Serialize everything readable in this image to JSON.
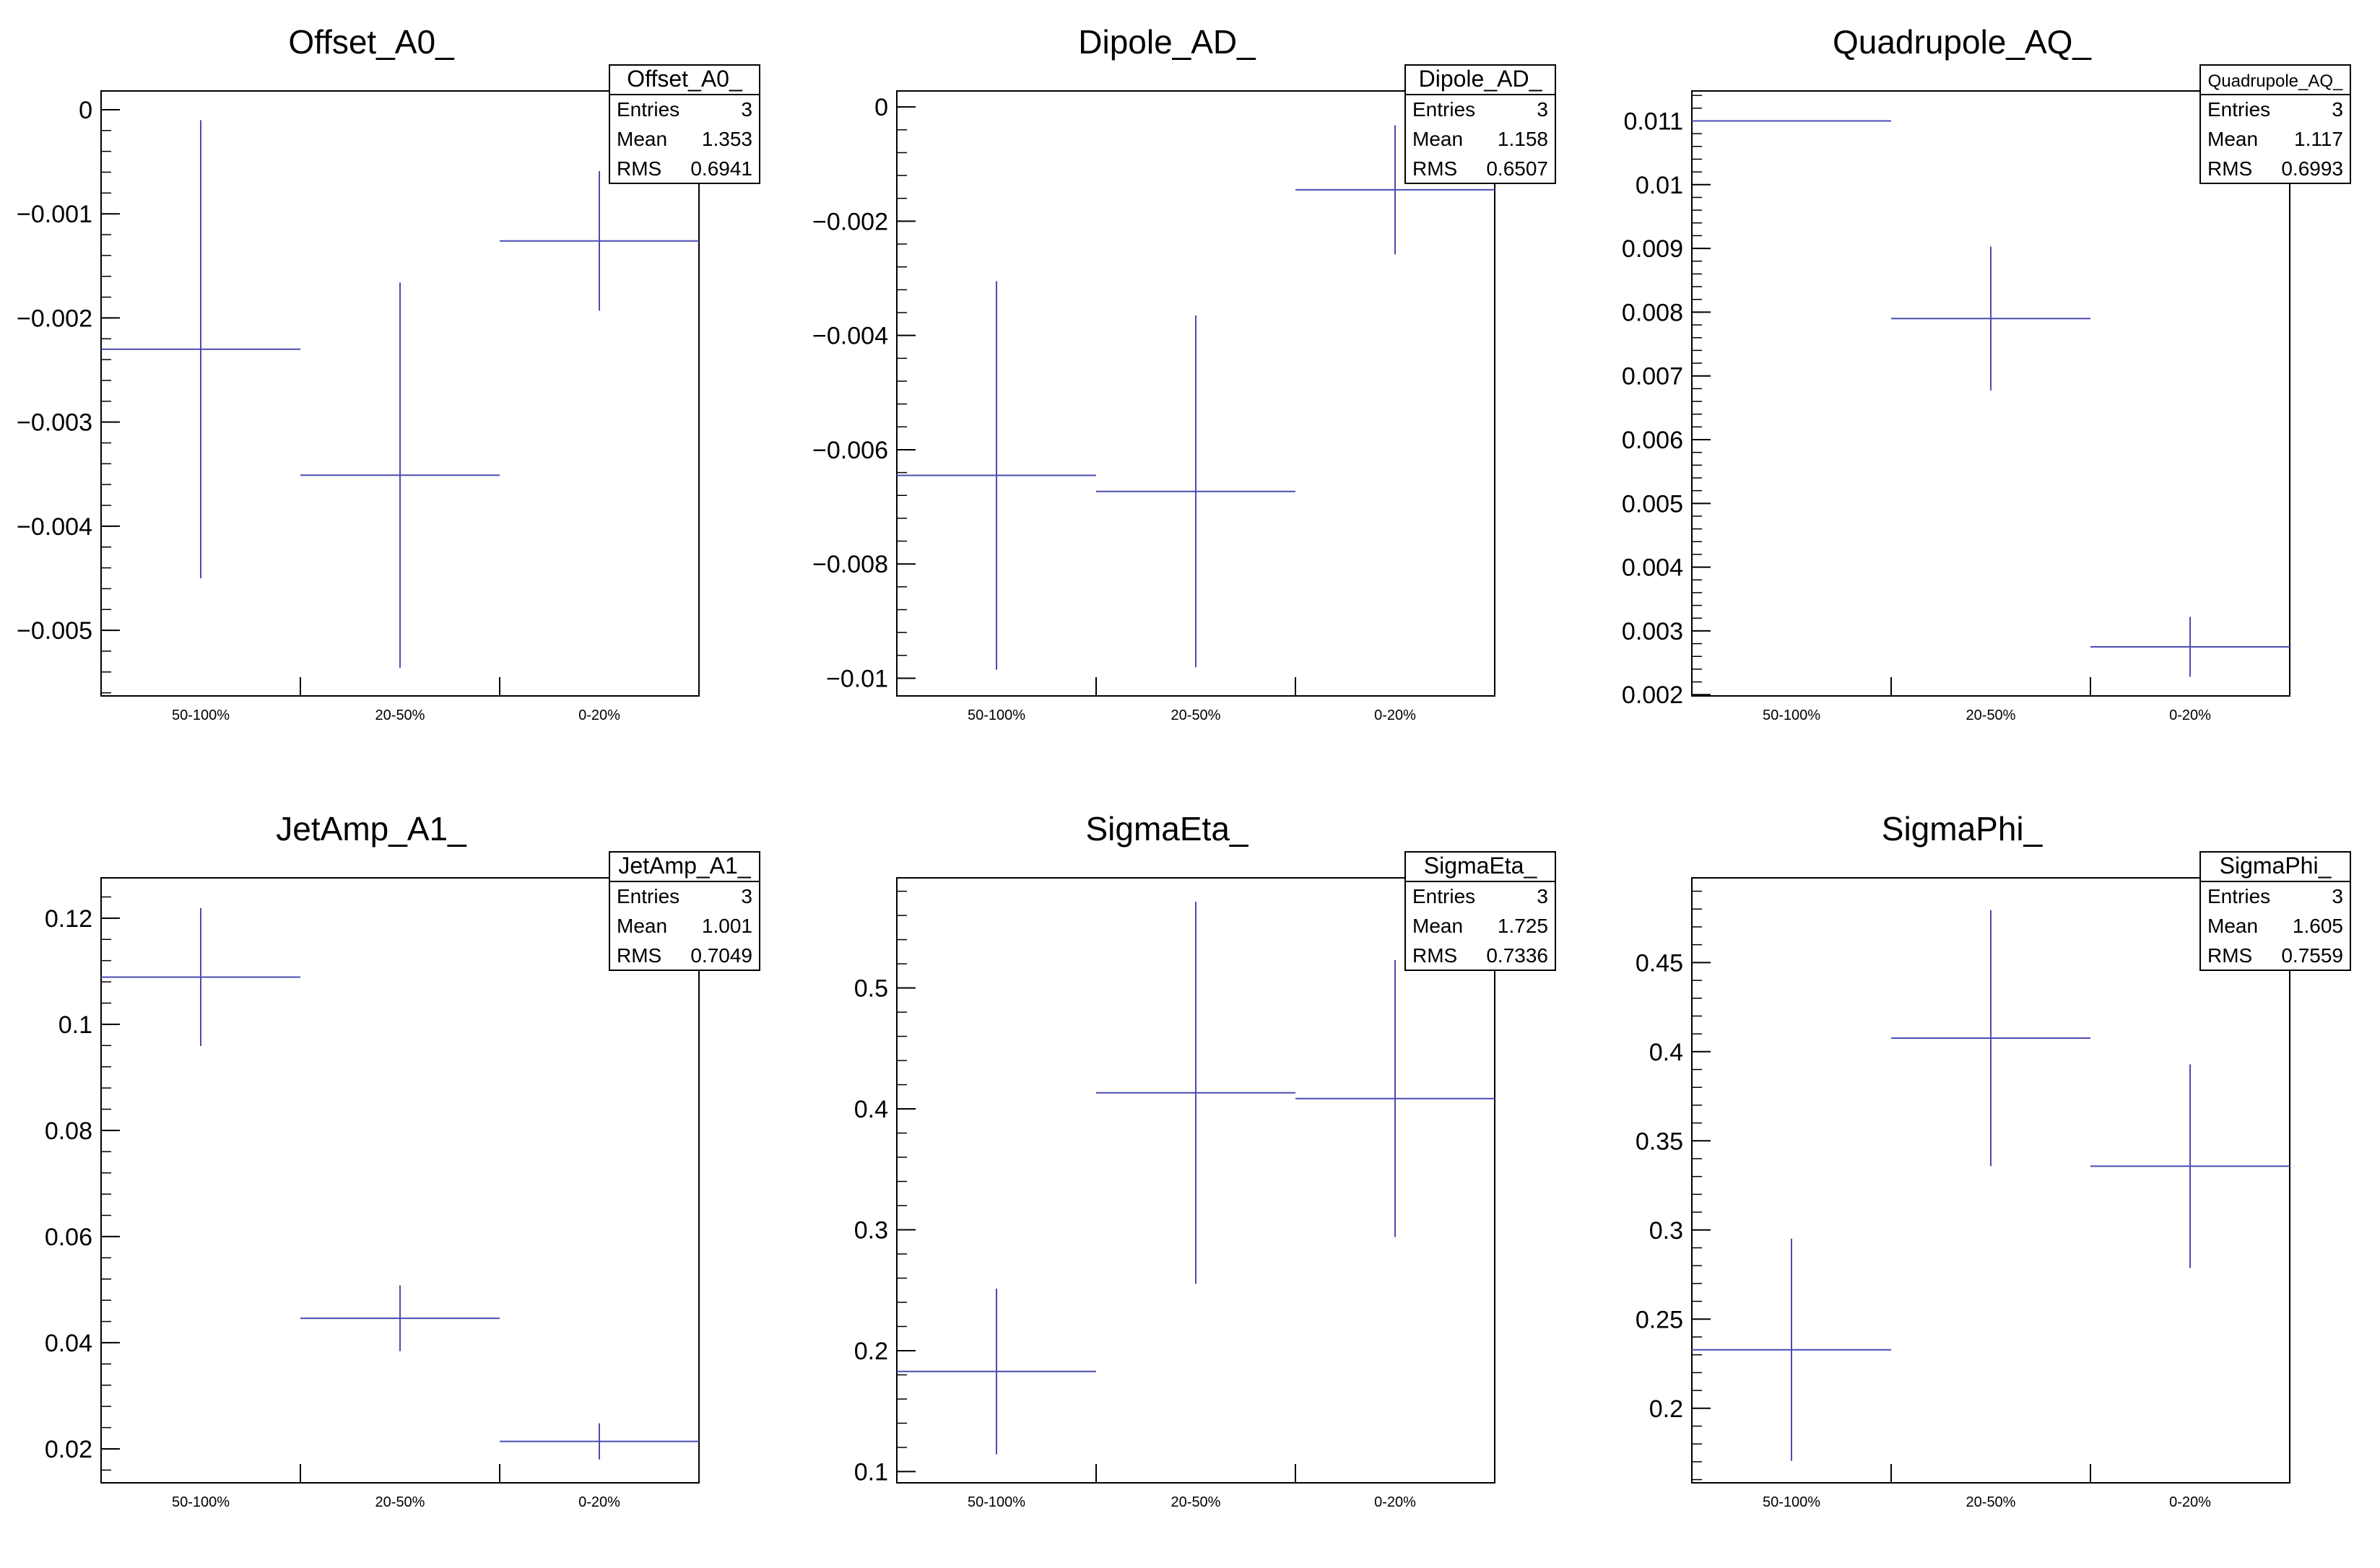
{
  "colors": {
    "series": "#4b4bb4",
    "axis": "#000000",
    "statsBorder": "#000000",
    "background": "#ffffff"
  },
  "chart_data": [
    {
      "type": "errorbar",
      "title": "Offset_A0_",
      "categories": [
        "50-100%",
        "20-50%",
        "0-20%"
      ],
      "series": [
        {
          "values": [
            -0.0023,
            -0.00351,
            -0.00126
          ],
          "errors": [
            0.0022,
            0.00185,
            0.00067
          ]
        }
      ],
      "ylim": [
        -0.00563,
        0.00018
      ],
      "yticks": [
        0,
        -0.001,
        -0.002,
        -0.003,
        -0.004,
        -0.005
      ],
      "ytick_labels": [
        "0",
        "−0.001",
        "−0.002",
        "−0.003",
        "−0.004",
        "−0.005"
      ],
      "minor_step": 0.0002,
      "stats": {
        "title": "Offset_A0_",
        "entries_label": "Entries",
        "entries": "3",
        "mean_label": "Mean",
        "mean": "1.353",
        "rms_label": "RMS",
        "rms": "0.6941"
      }
    },
    {
      "type": "errorbar",
      "title": "Dipole_AD_",
      "categories": [
        "50-100%",
        "20-50%",
        "0-20%"
      ],
      "series": [
        {
          "values": [
            -0.00645,
            -0.00673,
            -0.00145
          ],
          "errors": [
            0.0034,
            0.00308,
            0.00113
          ]
        }
      ],
      "ylim": [
        -0.01031,
        0.00028
      ],
      "yticks": [
        0,
        -0.002,
        -0.004,
        -0.006,
        -0.008,
        -0.01
      ],
      "ytick_labels": [
        "0",
        "−0.002",
        "−0.004",
        "−0.006",
        "−0.008",
        "−0.01"
      ],
      "minor_step": 0.0004,
      "stats": {
        "title": "Dipole_AD_",
        "entries_label": "Entries",
        "entries": "3",
        "mean_label": "Mean",
        "mean": "1.158",
        "rms_label": "RMS",
        "rms": "0.6507"
      }
    },
    {
      "type": "errorbar",
      "title": "Quadrupole_AQ_",
      "categories": [
        "50-100%",
        "20-50%",
        "0-20%"
      ],
      "series": [
        {
          "values": [
            0.011,
            0.0079,
            0.00275
          ],
          "errors": [
            0.0,
            0.00113,
            0.00047
          ]
        }
      ],
      "ylim": [
        0.00198,
        0.01147
      ],
      "yticks": [
        0.011,
        0.01,
        0.009,
        0.008,
        0.007,
        0.006,
        0.005,
        0.004,
        0.003,
        0.002
      ],
      "ytick_labels": [
        "0.011",
        "0.01",
        "0.009",
        "0.008",
        "0.007",
        "0.006",
        "0.005",
        "0.004",
        "0.003",
        "0.002"
      ],
      "minor_step": 0.0002,
      "stats": {
        "title": "Quadrupole_AQ_",
        "entries_label": "Entries",
        "entries": "3",
        "mean_label": "Mean",
        "mean": "1.117",
        "rms_label": "RMS",
        "rms": "0.6993"
      }
    },
    {
      "type": "errorbar",
      "title": "JetAmp_A1_",
      "categories": [
        "50-100%",
        "20-50%",
        "0-20%"
      ],
      "series": [
        {
          "values": [
            0.1089,
            0.0446,
            0.0214
          ],
          "errors": [
            0.013,
            0.0062,
            0.0034
          ]
        }
      ],
      "ylim": [
        0.0136,
        0.1276
      ],
      "yticks": [
        0.12,
        0.1,
        0.08,
        0.06,
        0.04,
        0.02
      ],
      "ytick_labels": [
        "0.12",
        "0.1",
        "0.08",
        "0.06",
        "0.04",
        "0.02"
      ],
      "minor_step": 0.004,
      "stats": {
        "title": "JetAmp_A1_",
        "entries_label": "Entries",
        "entries": "3",
        "mean_label": "Mean",
        "mean": "1.001",
        "rms_label": "RMS",
        "rms": "0.7049"
      }
    },
    {
      "type": "errorbar",
      "title": "SigmaEta_",
      "categories": [
        "50-100%",
        "20-50%",
        "0-20%"
      ],
      "series": [
        {
          "values": [
            0.1828,
            0.4133,
            0.4085
          ],
          "errors": [
            0.0685,
            0.158,
            0.1145
          ]
        }
      ],
      "ylim": [
        0.0907,
        0.5911
      ],
      "yticks": [
        0.5,
        0.4,
        0.3,
        0.2,
        0.1
      ],
      "ytick_labels": [
        "0.5",
        "0.4",
        "0.3",
        "0.2",
        "0.1"
      ],
      "minor_step": 0.02,
      "stats": {
        "title": "SigmaEta_",
        "entries_label": "Entries",
        "entries": "3",
        "mean_label": "Mean",
        "mean": "1.725",
        "rms_label": "RMS",
        "rms": "0.7336"
      }
    },
    {
      "type": "errorbar",
      "title": "SigmaPhi_",
      "categories": [
        "50-100%",
        "20-50%",
        "0-20%"
      ],
      "series": [
        {
          "values": [
            0.2328,
            0.4076,
            0.3358
          ],
          "errors": [
            0.0623,
            0.0718,
            0.0571
          ]
        }
      ],
      "ylim": [
        0.1582,
        0.4975
      ],
      "yticks": [
        0.45,
        0.4,
        0.35,
        0.3,
        0.25,
        0.2
      ],
      "ytick_labels": [
        "0.45",
        "0.4",
        "0.35",
        "0.3",
        "0.25",
        "0.2"
      ],
      "minor_step": 0.01,
      "stats": {
        "title": "SigmaPhi_",
        "entries_label": "Entries",
        "entries": "3",
        "mean_label": "Mean",
        "mean": "1.605",
        "rms_label": "RMS",
        "rms": "0.7559"
      }
    }
  ]
}
